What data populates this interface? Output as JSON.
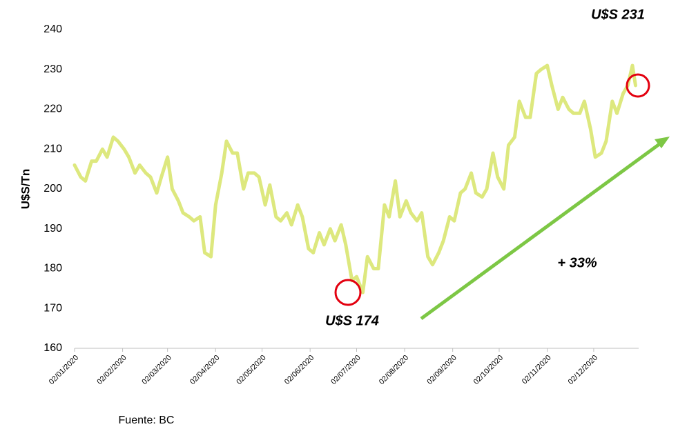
{
  "chart_data": {
    "type": "line",
    "y_label": "U$S/Tn",
    "annotations": [
      "U$S 231",
      "U$S 174",
      "+ 33%"
    ],
    "source": "Fuente: BC",
    "x": [
      "2020-01-02",
      "2020-01-06",
      "2020-01-09",
      "2020-01-13",
      "2020-01-16",
      "2020-01-20",
      "2020-01-23",
      "2020-01-27",
      "2020-01-30",
      "2020-02-03",
      "2020-02-06",
      "2020-02-10",
      "2020-02-13",
      "2020-02-17",
      "2020-02-20",
      "2020-02-24",
      "2020-02-27",
      "2020-03-02",
      "2020-03-05",
      "2020-03-09",
      "2020-03-12",
      "2020-03-16",
      "2020-03-19",
      "2020-03-23",
      "2020-03-26",
      "2020-03-30",
      "2020-04-02",
      "2020-04-06",
      "2020-04-09",
      "2020-04-13",
      "2020-04-16",
      "2020-04-20",
      "2020-04-23",
      "2020-04-27",
      "2020-04-30",
      "2020-05-04",
      "2020-05-07",
      "2020-05-11",
      "2020-05-14",
      "2020-05-18",
      "2020-05-21",
      "2020-05-25",
      "2020-05-28",
      "2020-06-01",
      "2020-06-04",
      "2020-06-08",
      "2020-06-11",
      "2020-06-15",
      "2020-06-18",
      "2020-06-22",
      "2020-06-25",
      "2020-06-29",
      "2020-07-02",
      "2020-07-06",
      "2020-07-09",
      "2020-07-13",
      "2020-07-16",
      "2020-07-20",
      "2020-07-23",
      "2020-07-27",
      "2020-07-30",
      "2020-08-03",
      "2020-08-06",
      "2020-08-10",
      "2020-08-13",
      "2020-08-17",
      "2020-08-20",
      "2020-08-24",
      "2020-08-27",
      "2020-08-31",
      "2020-09-03",
      "2020-09-07",
      "2020-09-10",
      "2020-09-14",
      "2020-09-17",
      "2020-09-21",
      "2020-09-24",
      "2020-09-28",
      "2020-10-01",
      "2020-10-05",
      "2020-10-08",
      "2020-10-12",
      "2020-10-15",
      "2020-10-19",
      "2020-10-22",
      "2020-10-26",
      "2020-10-29",
      "2020-11-02",
      "2020-11-05",
      "2020-11-09",
      "2020-11-12",
      "2020-11-16",
      "2020-11-19",
      "2020-11-23",
      "2020-11-26",
      "2020-11-30",
      "2020-12-03",
      "2020-12-07",
      "2020-12-10",
      "2020-12-14",
      "2020-12-17",
      "2020-12-21",
      "2020-12-24",
      "2020-12-27",
      "2020-12-29"
    ],
    "series": [
      {
        "name": "U$S/Tn",
        "color": "#dde87e",
        "values": [
          206,
          203,
          202,
          207,
          207,
          210,
          208,
          213,
          212,
          210,
          208,
          204,
          206,
          204,
          203,
          199,
          203,
          208,
          200,
          197,
          194,
          193,
          192,
          193,
          184,
          183,
          196,
          204,
          212,
          209,
          209,
          200,
          204,
          204,
          203,
          196,
          201,
          193,
          192,
          194,
          191,
          196,
          193,
          185,
          184,
          189,
          186,
          190,
          187,
          191,
          186,
          177,
          178,
          174,
          183,
          180,
          180,
          196,
          193,
          202,
          193,
          197,
          194,
          192,
          194,
          183,
          181,
          184,
          187,
          193,
          192,
          199,
          200,
          204,
          199,
          198,
          200,
          209,
          203,
          200,
          211,
          213,
          222,
          218,
          218,
          229,
          230,
          231,
          226,
          220,
          223,
          220,
          219,
          219,
          222,
          215,
          208,
          209,
          212,
          222,
          219,
          224,
          226,
          231,
          226
        ]
      }
    ],
    "xlim": [
      "2020-01-02",
      "2020-12-31"
    ],
    "xticks": [
      {
        "value": "2020-01-02",
        "label": "02/01/2020"
      },
      {
        "value": "2020-02-02",
        "label": "02/02/2020"
      },
      {
        "value": "2020-03-02",
        "label": "02/03/2020"
      },
      {
        "value": "2020-04-02",
        "label": "02/04/2020"
      },
      {
        "value": "2020-05-02",
        "label": "02/05/2020"
      },
      {
        "value": "2020-06-02",
        "label": "02/06/2020"
      },
      {
        "value": "2020-07-02",
        "label": "02/07/2020"
      },
      {
        "value": "2020-08-02",
        "label": "02/08/2020"
      },
      {
        "value": "2020-09-02",
        "label": "02/09/2020"
      },
      {
        "value": "2020-10-02",
        "label": "02/10/2020"
      },
      {
        "value": "2020-11-02",
        "label": "02/11/2020"
      },
      {
        "value": "2020-12-02",
        "label": "02/12/2020"
      }
    ],
    "ylim": [
      160,
      240
    ],
    "yticks": [
      160,
      170,
      180,
      190,
      200,
      210,
      220,
      230,
      240
    ],
    "grid": false
  }
}
